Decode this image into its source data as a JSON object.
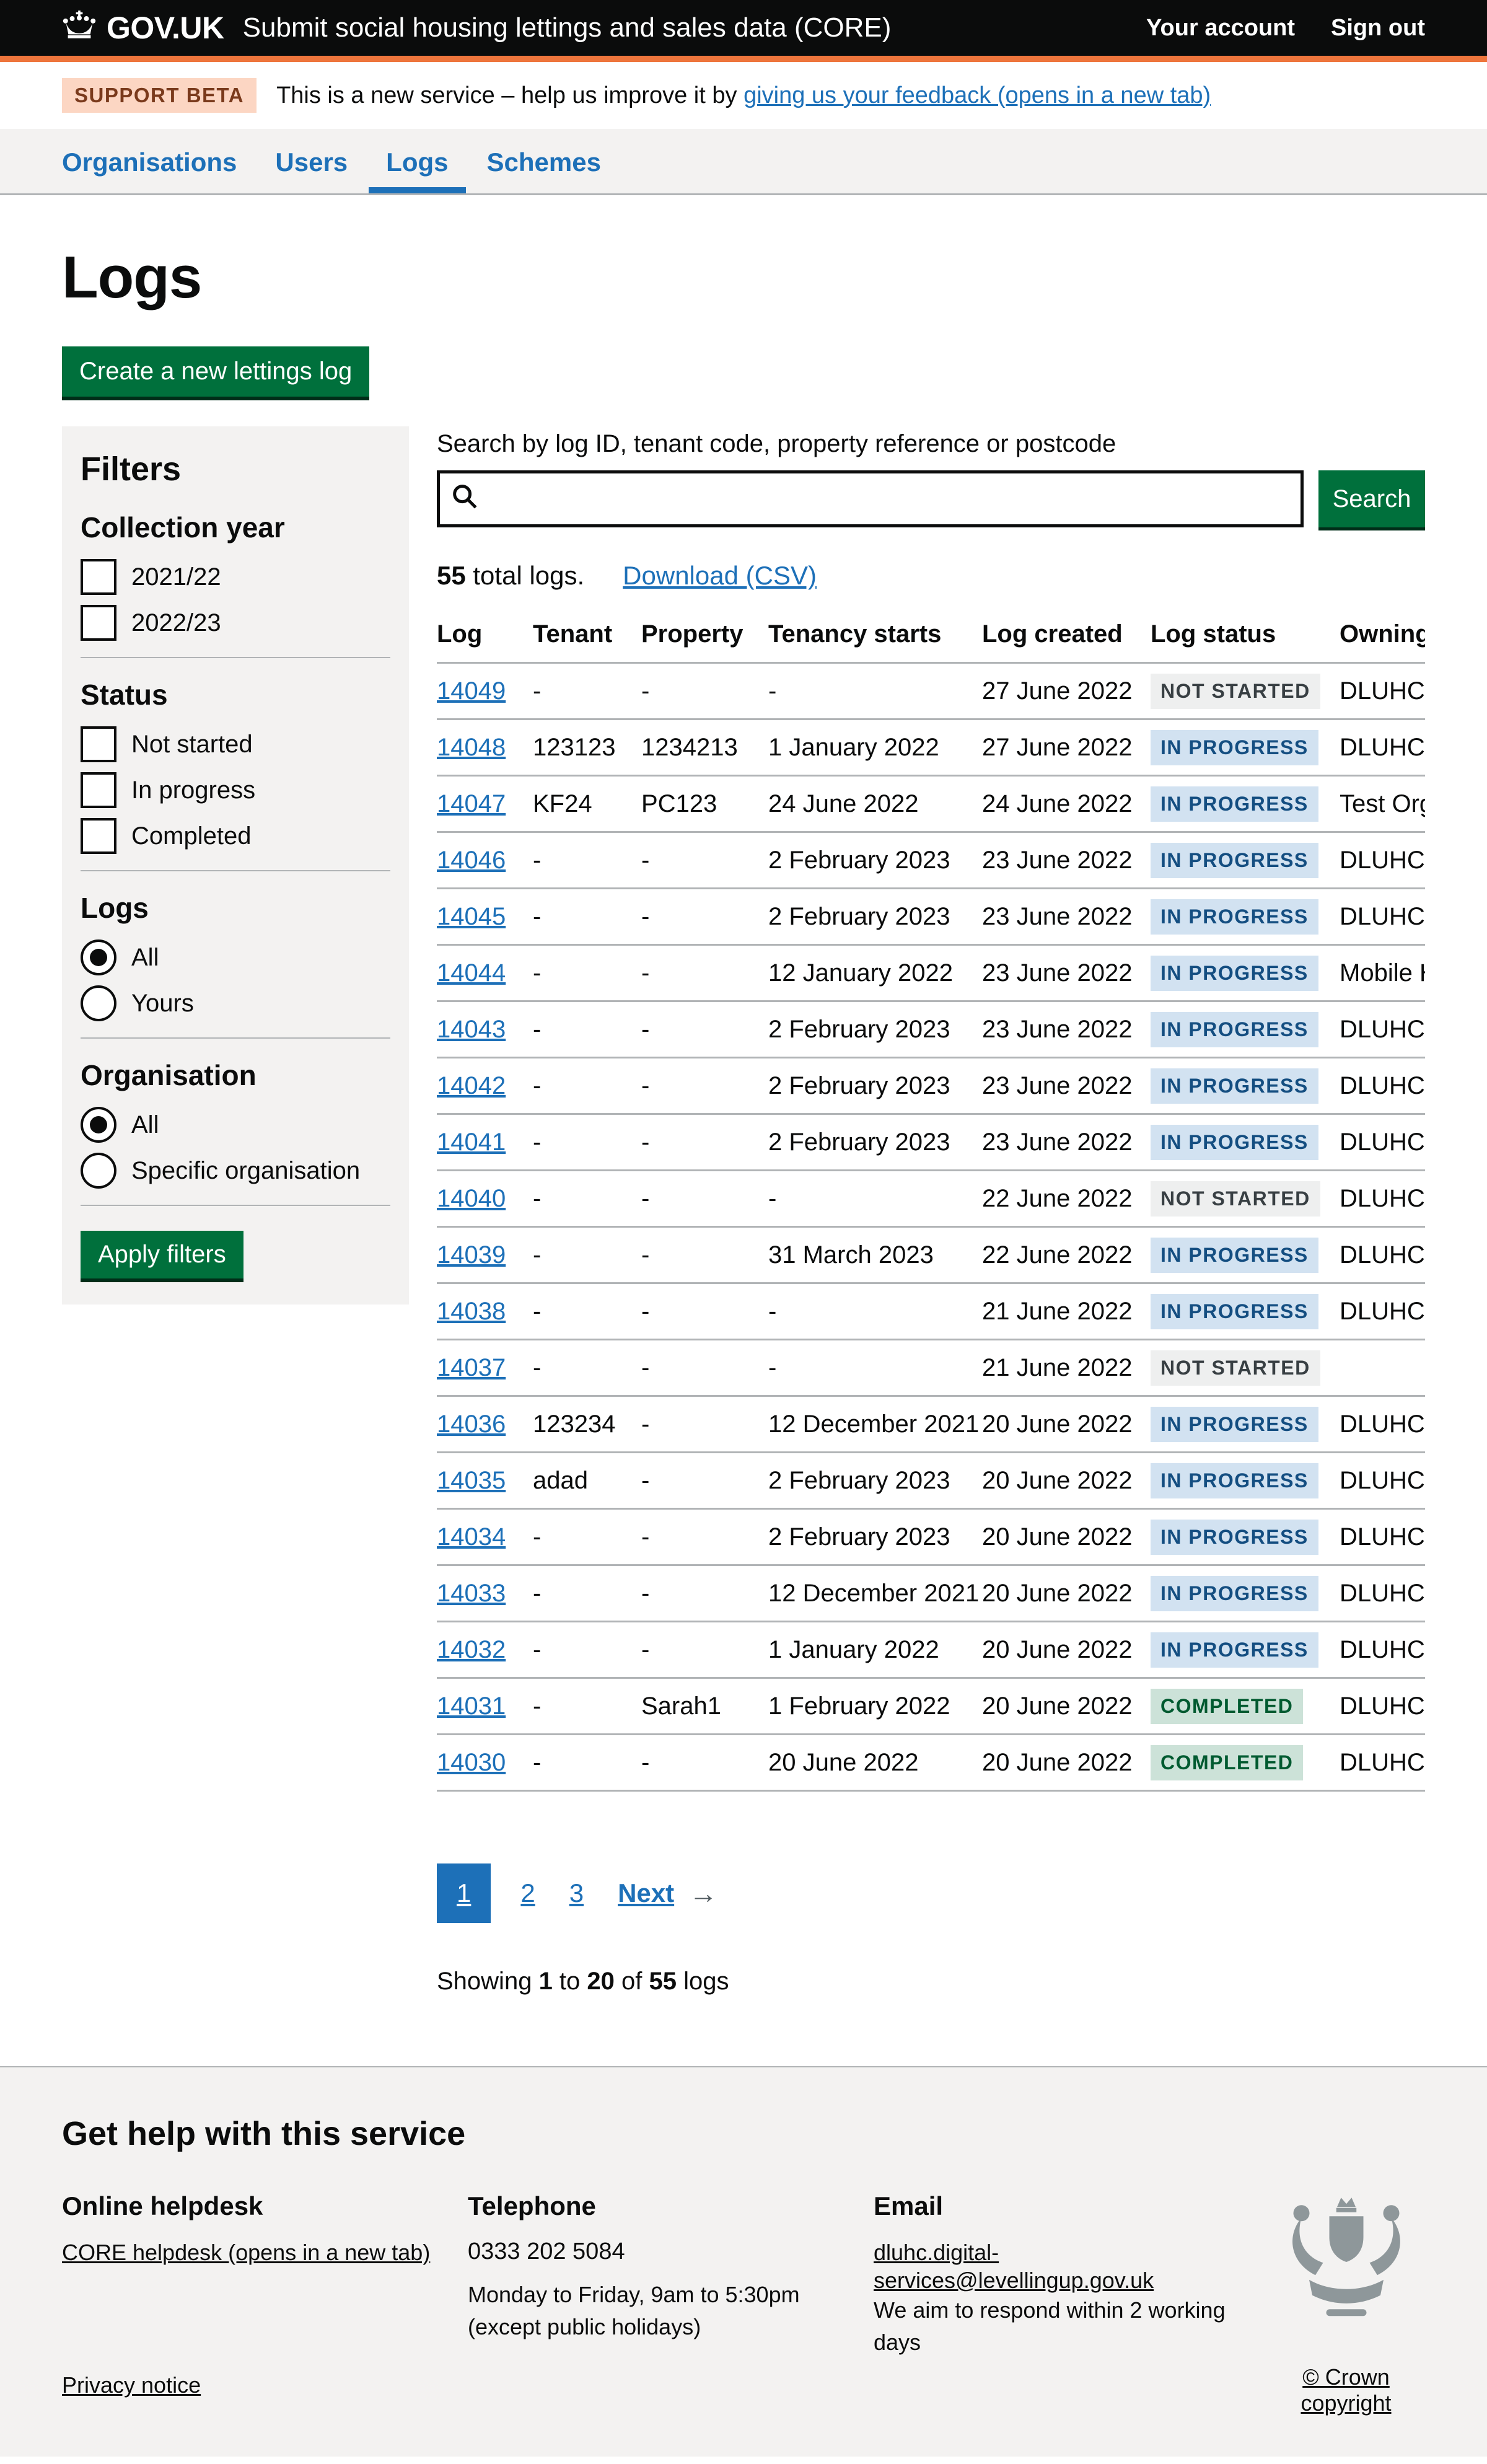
{
  "header": {
    "logo": "GOV.UK",
    "service_name": "Submit social housing lettings and sales data (CORE)",
    "account_link": "Your account",
    "signout_link": "Sign out"
  },
  "phase_banner": {
    "tag": "SUPPORT BETA",
    "text_before": "This is a new service – help us improve it by ",
    "feedback_link": "giving us your feedback (opens in a new tab)"
  },
  "nav": {
    "items": [
      {
        "label": "Organisations",
        "active": false
      },
      {
        "label": "Users",
        "active": false
      },
      {
        "label": "Logs",
        "active": true
      },
      {
        "label": "Schemes",
        "active": false
      }
    ]
  },
  "page": {
    "title": "Logs",
    "create_button": "Create a new lettings log"
  },
  "filters": {
    "title": "Filters",
    "apply_button": "Apply filters",
    "groups": [
      {
        "label": "Collection year",
        "type": "checkbox",
        "options": [
          {
            "label": "2021/22",
            "checked": false
          },
          {
            "label": "2022/23",
            "checked": false
          }
        ]
      },
      {
        "label": "Status",
        "type": "checkbox",
        "options": [
          {
            "label": "Not started",
            "checked": false
          },
          {
            "label": "In progress",
            "checked": false
          },
          {
            "label": "Completed",
            "checked": false
          }
        ]
      },
      {
        "label": "Logs",
        "type": "radio",
        "options": [
          {
            "label": "All",
            "selected": true
          },
          {
            "label": "Yours",
            "selected": false
          }
        ]
      },
      {
        "label": "Organisation",
        "type": "radio",
        "options": [
          {
            "label": "All",
            "selected": true
          },
          {
            "label": "Specific organisation",
            "selected": false
          }
        ]
      }
    ]
  },
  "search": {
    "label": "Search by log ID, tenant code, property reference or postcode",
    "value": "",
    "button": "Search"
  },
  "results": {
    "count": "55",
    "count_suffix": " total logs.",
    "download_link": "Download (CSV)"
  },
  "table": {
    "columns": [
      "Log",
      "Tenant",
      "Property",
      "Tenancy starts",
      "Log created",
      "Log status",
      "Owning organisation"
    ],
    "rows": [
      {
        "id": "14049",
        "tenant": "-",
        "property": "-",
        "tenancy_starts": "-",
        "created": "27 June 2022",
        "status": "NOT STARTED",
        "status_kind": "grey",
        "owning": "DLUHC"
      },
      {
        "id": "14048",
        "tenant": "123123",
        "property": "1234213",
        "tenancy_starts": "1 January 2022",
        "created": "27 June 2022",
        "status": "IN PROGRESS",
        "status_kind": "blue",
        "owning": "DLUHC"
      },
      {
        "id": "14047",
        "tenant": "KF24",
        "property": "PC123",
        "tenancy_starts": "24 June 2022",
        "created": "24 June 2022",
        "status": "IN PROGRESS",
        "status_kind": "blue",
        "owning": "Test Organisa"
      },
      {
        "id": "14046",
        "tenant": "-",
        "property": "-",
        "tenancy_starts": "2 February 2023",
        "created": "23 June 2022",
        "status": "IN PROGRESS",
        "status_kind": "blue",
        "owning": "DLUHC Tes"
      },
      {
        "id": "14045",
        "tenant": "-",
        "property": "-",
        "tenancy_starts": "2 February 2023",
        "created": "23 June 2022",
        "status": "IN PROGRESS",
        "status_kind": "blue",
        "owning": "DLUHC Tes"
      },
      {
        "id": "14044",
        "tenant": "-",
        "property": "-",
        "tenancy_starts": "12 January 2022",
        "created": "23 June 2022",
        "status": "IN PROGRESS",
        "status_kind": "blue",
        "owning": "Mobile Hou"
      },
      {
        "id": "14043",
        "tenant": "-",
        "property": "-",
        "tenancy_starts": "2 February 2023",
        "created": "23 June 2022",
        "status": "IN PROGRESS",
        "status_kind": "blue",
        "owning": "DLUHC Tes"
      },
      {
        "id": "14042",
        "tenant": "-",
        "property": "-",
        "tenancy_starts": "2 February 2023",
        "created": "23 June 2022",
        "status": "IN PROGRESS",
        "status_kind": "blue",
        "owning": "DLUHC Tes"
      },
      {
        "id": "14041",
        "tenant": "-",
        "property": "-",
        "tenancy_starts": "2 February 2023",
        "created": "23 June 2022",
        "status": "IN PROGRESS",
        "status_kind": "blue",
        "owning": "DLUHC"
      },
      {
        "id": "14040",
        "tenant": "-",
        "property": "-",
        "tenancy_starts": "-",
        "created": "22 June 2022",
        "status": "NOT STARTED",
        "status_kind": "grey",
        "owning": "DLUHC"
      },
      {
        "id": "14039",
        "tenant": "-",
        "property": "-",
        "tenancy_starts": "31 March 2023",
        "created": "22 June 2022",
        "status": "IN PROGRESS",
        "status_kind": "blue",
        "owning": "DLUHC Tes"
      },
      {
        "id": "14038",
        "tenant": "-",
        "property": "-",
        "tenancy_starts": "-",
        "created": "21 June 2022",
        "status": "IN PROGRESS",
        "status_kind": "blue",
        "owning": "DLUHC"
      },
      {
        "id": "14037",
        "tenant": "-",
        "property": "-",
        "tenancy_starts": "-",
        "created": "21 June 2022",
        "status": "NOT STARTED",
        "status_kind": "grey",
        "owning": ""
      },
      {
        "id": "14036",
        "tenant": "123234",
        "property": "-",
        "tenancy_starts": "12 December 2021",
        "created": "20 June 2022",
        "status": "IN PROGRESS",
        "status_kind": "blue",
        "owning": "DLUHC Tes"
      },
      {
        "id": "14035",
        "tenant": "adad",
        "property": "-",
        "tenancy_starts": "2 February 2023",
        "created": "20 June 2022",
        "status": "IN PROGRESS",
        "status_kind": "blue",
        "owning": "DLUHC Tes"
      },
      {
        "id": "14034",
        "tenant": "-",
        "property": "-",
        "tenancy_starts": "2 February 2023",
        "created": "20 June 2022",
        "status": "IN PROGRESS",
        "status_kind": "blue",
        "owning": "DLUHC Tes"
      },
      {
        "id": "14033",
        "tenant": "-",
        "property": "-",
        "tenancy_starts": "12 December 2021",
        "created": "20 June 2022",
        "status": "IN PROGRESS",
        "status_kind": "blue",
        "owning": "DLUHC Tes"
      },
      {
        "id": "14032",
        "tenant": "-",
        "property": "-",
        "tenancy_starts": "1 January 2022",
        "created": "20 June 2022",
        "status": "IN PROGRESS",
        "status_kind": "blue",
        "owning": "DLUHC Tes"
      },
      {
        "id": "14031",
        "tenant": "-",
        "property": "Sarah1",
        "tenancy_starts": "1 February 2022",
        "created": "20 June 2022",
        "status": "COMPLETED",
        "status_kind": "green",
        "owning": "DLUHC Tes"
      },
      {
        "id": "14030",
        "tenant": "-",
        "property": "-",
        "tenancy_starts": "20 June 2022",
        "created": "20 June 2022",
        "status": "COMPLETED",
        "status_kind": "green",
        "owning": "DLUHC Tes"
      }
    ]
  },
  "pagination": {
    "pages": [
      {
        "label": "1",
        "current": true
      },
      {
        "label": "2",
        "current": false
      },
      {
        "label": "3",
        "current": false
      }
    ],
    "next_label": "Next",
    "arrow": "→"
  },
  "showing": {
    "prefix": "Showing ",
    "from": "1",
    "mid": " to ",
    "to": "20",
    "of": " of ",
    "total": "55",
    "suffix": " logs"
  },
  "footer": {
    "title": "Get help with this service",
    "columns": [
      {
        "heading": "Online helpdesk",
        "link": "CORE helpdesk (opens in a new tab)",
        "lines": []
      },
      {
        "heading": "Telephone",
        "number": "0333 202 5084",
        "lines": [
          "Monday to Friday, 9am to 5:30pm",
          "(except public holidays)"
        ]
      },
      {
        "heading": "Email",
        "link": "dluhc.digital-services@levellingup.gov.uk",
        "lines": [
          "We aim to respond within 2 working days"
        ]
      }
    ],
    "privacy_link": "Privacy notice",
    "copyright_link": "© Crown copyright"
  },
  "colors": {
    "accent_orange": "#ee753c",
    "link_blue": "#1d70b8",
    "button_green": "#00703c",
    "tag_blue_bg": "#d2e2f1",
    "tag_green_bg": "#cce2d8",
    "tag_grey_bg": "#eeefef",
    "panel_grey": "#f3f2f1"
  }
}
